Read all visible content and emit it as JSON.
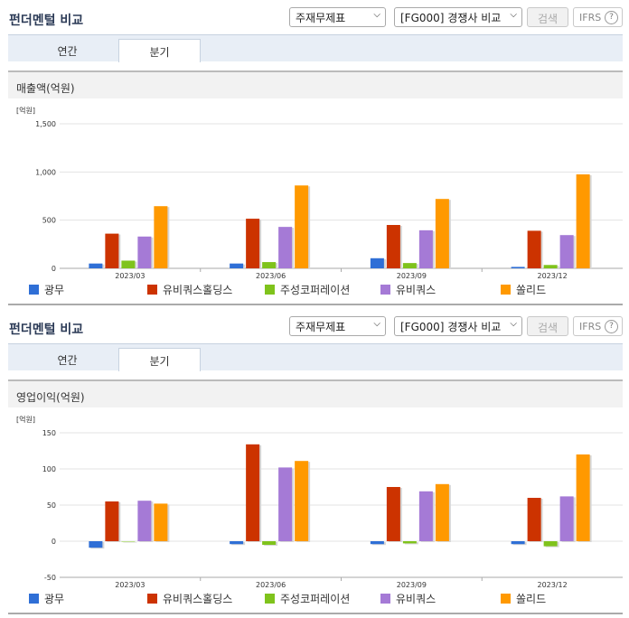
{
  "panels": [
    {
      "title": "펀더멘털 비교",
      "select1": "주재무제표",
      "select2": "[FG000] 경쟁사 비교",
      "search_label": "검색",
      "ifrs_label": "IFRS",
      "help_label": "?",
      "tabs": [
        {
          "label": "연간",
          "active": false
        },
        {
          "label": "분기",
          "active": true
        }
      ],
      "section_title": "매출액(억원)"
    },
    {
      "title": "펀더멘털 비교",
      "select1": "주재무제표",
      "select2": "[FG000] 경쟁사 비교",
      "search_label": "검색",
      "ifrs_label": "IFRS",
      "help_label": "?",
      "tabs": [
        {
          "label": "연간",
          "active": false
        },
        {
          "label": "분기",
          "active": true
        }
      ],
      "section_title": "영업이익(억원)"
    }
  ],
  "colors": {
    "광무": "#2f6fd6",
    "유비쿼스홀딩스": "#cc3300",
    "주성코퍼레이션": "#7fc31c",
    "유비쿼스": "#a57ad6",
    "쏠리드": "#ff9900"
  },
  "chart_data": [
    {
      "type": "bar",
      "unit_label": "[억원]",
      "categories": [
        "2023/03",
        "2023/06",
        "2023/09",
        "2023/12"
      ],
      "ylim": [
        0,
        1500
      ],
      "yticks": [
        "0",
        "500",
        "1,000",
        "1,500"
      ],
      "ytick_values": [
        0,
        500,
        1000,
        1500
      ],
      "grid": true,
      "legend_position": "bottom",
      "series": [
        {
          "name": "광무",
          "values": [
            50,
            50,
            105,
            15
          ]
        },
        {
          "name": "유비쿼스홀딩스",
          "values": [
            360,
            515,
            450,
            390
          ]
        },
        {
          "name": "주성코퍼레이션",
          "values": [
            80,
            65,
            55,
            35
          ]
        },
        {
          "name": "유비쿼스",
          "values": [
            330,
            430,
            395,
            345
          ]
        },
        {
          "name": "쏠리드",
          "values": [
            645,
            860,
            720,
            975
          ]
        }
      ]
    },
    {
      "type": "bar",
      "unit_label": "[억원]",
      "categories": [
        "2023/03",
        "2023/06",
        "2023/09",
        "2023/12"
      ],
      "ylim": [
        -50,
        150
      ],
      "yticks": [
        "-50",
        "0",
        "50",
        "100",
        "150"
      ],
      "ytick_values": [
        -50,
        0,
        50,
        100,
        150
      ],
      "grid": true,
      "legend_position": "bottom",
      "series": [
        {
          "name": "광무",
          "values": [
            -9,
            -4,
            -4,
            -4
          ]
        },
        {
          "name": "유비쿼스홀딩스",
          "values": [
            55,
            134,
            75,
            60
          ]
        },
        {
          "name": "주성코퍼레이션",
          "values": [
            0,
            -5,
            -3,
            -7
          ]
        },
        {
          "name": "유비쿼스",
          "values": [
            56,
            102,
            69,
            62
          ]
        },
        {
          "name": "쏠리드",
          "values": [
            52,
            111,
            79,
            120
          ]
        }
      ]
    }
  ]
}
